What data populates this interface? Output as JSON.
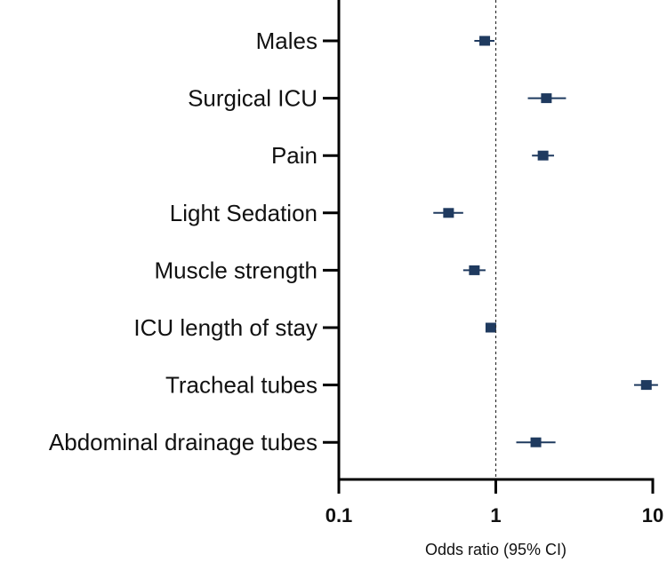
{
  "chart_data": {
    "type": "forest",
    "xlabel": "Odds ratio (95% CI)",
    "xscale": "log",
    "xlim": [
      0.1,
      10
    ],
    "reference_line": 1,
    "x_ticks": [
      {
        "value": 0.1,
        "label": "0.1"
      },
      {
        "value": 1,
        "label": "1"
      },
      {
        "value": 10,
        "label": "10"
      }
    ],
    "rows": [
      {
        "label": "Males",
        "or": 0.85,
        "lower": 0.73,
        "upper": 0.98
      },
      {
        "label": "Surgical ICU",
        "or": 2.1,
        "lower": 1.6,
        "upper": 2.8
      },
      {
        "label": "Pain",
        "or": 2.0,
        "lower": 1.7,
        "upper": 2.35
      },
      {
        "label": "Light Sedation",
        "or": 0.5,
        "lower": 0.4,
        "upper": 0.62
      },
      {
        "label": "Muscle strength",
        "or": 0.73,
        "lower": 0.62,
        "upper": 0.86
      },
      {
        "label": "ICU length of stay",
        "or": 0.93,
        "lower": 0.91,
        "upper": 0.95
      },
      {
        "label": "Tracheal tubes",
        "or": 9.1,
        "lower": 7.6,
        "upper": 10.8
      },
      {
        "label": "Abdominal drainage tubes",
        "or": 1.8,
        "lower": 1.35,
        "upper": 2.4
      }
    ],
    "marker_color": "#1f3a5f"
  }
}
